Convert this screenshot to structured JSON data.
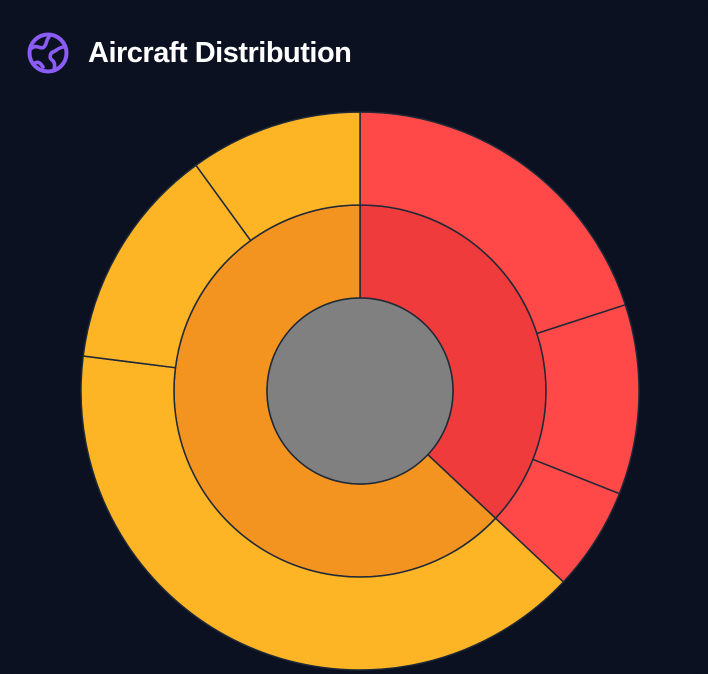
{
  "header": {
    "title": "Aircraft Distribution",
    "icon": "globe-icon",
    "icon_color": "#8b5cf6"
  },
  "chart_data": {
    "type": "sunburst",
    "title": "Aircraft Distribution",
    "stroke_color": "#1f2937",
    "center_color": "#808080",
    "groups": [
      {
        "value": 37,
        "color": "#ef3b3b",
        "children_color": "#ff4848",
        "children": [
          20,
          11,
          6
        ]
      },
      {
        "value": 63,
        "color": "#f39420",
        "children_color": "#fdb526",
        "children": [
          40,
          13,
          10
        ]
      }
    ]
  }
}
